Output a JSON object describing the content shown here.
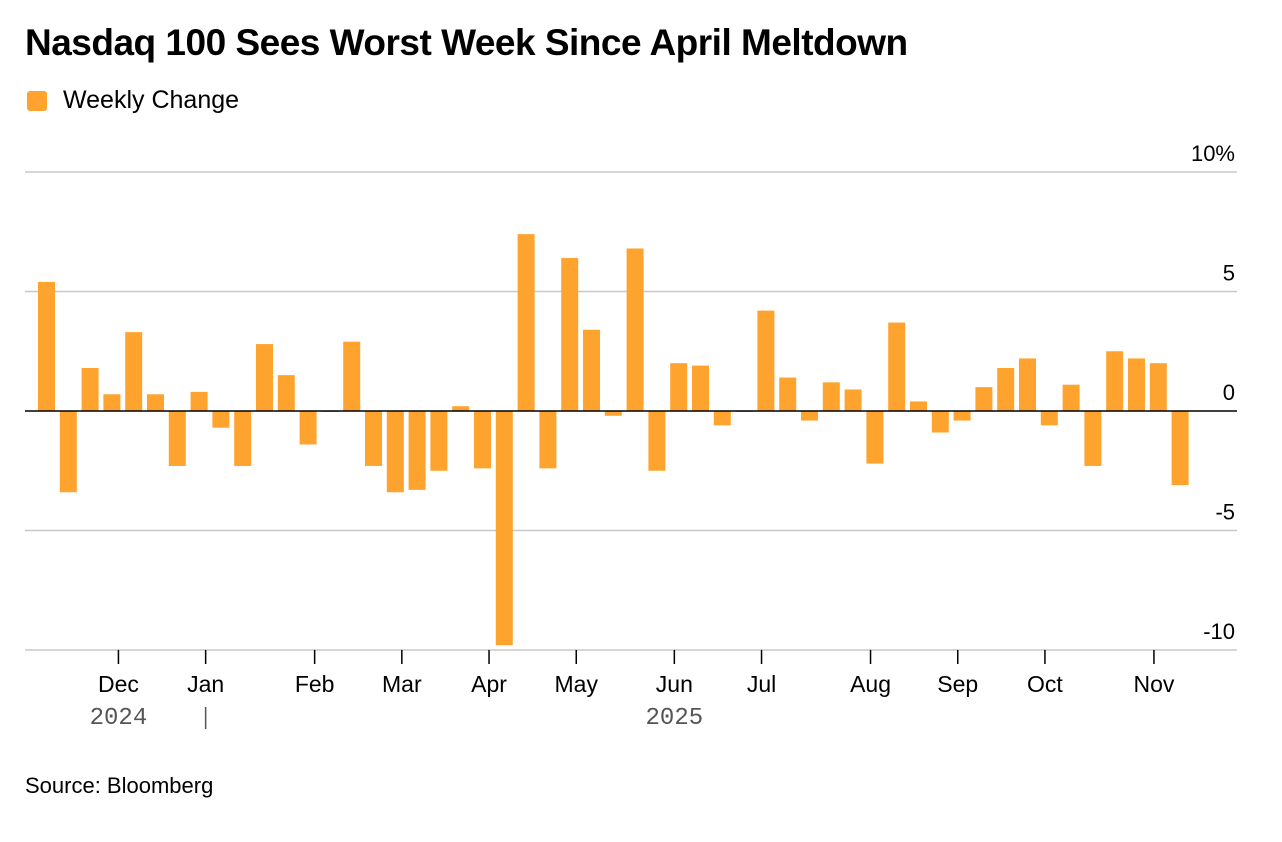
{
  "chart_data": {
    "type": "bar",
    "title": "Nasdaq 100 Sees Worst Week Since April Meltdown",
    "legend": [
      {
        "name": "Weekly Change",
        "color": "#ffa32f"
      }
    ],
    "source": "Source: Bloomberg",
    "ylim": [
      -10,
      10
    ],
    "yticks": [
      {
        "value": 10,
        "label": "10%"
      },
      {
        "value": 5,
        "label": "5"
      },
      {
        "value": 0,
        "label": "0"
      },
      {
        "value": -5,
        "label": "-5"
      },
      {
        "value": -10,
        "label": "-10"
      }
    ],
    "months": [
      {
        "label": "Dec",
        "week": 3.3
      },
      {
        "label": "Jan",
        "week": 7.3
      },
      {
        "label": "Feb",
        "week": 12.3
      },
      {
        "label": "Mar",
        "week": 16.3
      },
      {
        "label": "Apr",
        "week": 20.3
      },
      {
        "label": "May",
        "week": 24.3
      },
      {
        "label": "Jun",
        "week": 28.8
      },
      {
        "label": "Jul",
        "week": 32.8
      },
      {
        "label": "Aug",
        "week": 37.8
      },
      {
        "label": "Sep",
        "week": 41.8
      },
      {
        "label": "Oct",
        "week": 45.8
      },
      {
        "label": "Nov",
        "week": 50.8
      }
    ],
    "years": [
      {
        "label": "2024",
        "week": 3.3
      },
      {
        "label": "2025",
        "week": 28.8
      }
    ],
    "year_separator_week": 7.3,
    "values": [
      5.4,
      -3.4,
      1.8,
      0.7,
      3.3,
      0.7,
      -2.3,
      0.8,
      -0.7,
      -2.3,
      2.8,
      1.5,
      -1.4,
      0.0,
      2.9,
      -2.3,
      -3.4,
      -3.3,
      -2.5,
      0.2,
      -2.4,
      -9.8,
      7.4,
      -2.4,
      6.4,
      3.4,
      -0.2,
      6.8,
      -2.5,
      2.0,
      1.9,
      -0.6,
      0.0,
      4.2,
      1.4,
      -0.4,
      1.2,
      0.9,
      -2.2,
      3.7,
      0.4,
      -0.9,
      -0.4,
      1.0,
      1.8,
      2.2,
      -0.6,
      1.1,
      -2.3,
      2.5,
      2.2,
      2.0,
      -3.1
    ]
  }
}
